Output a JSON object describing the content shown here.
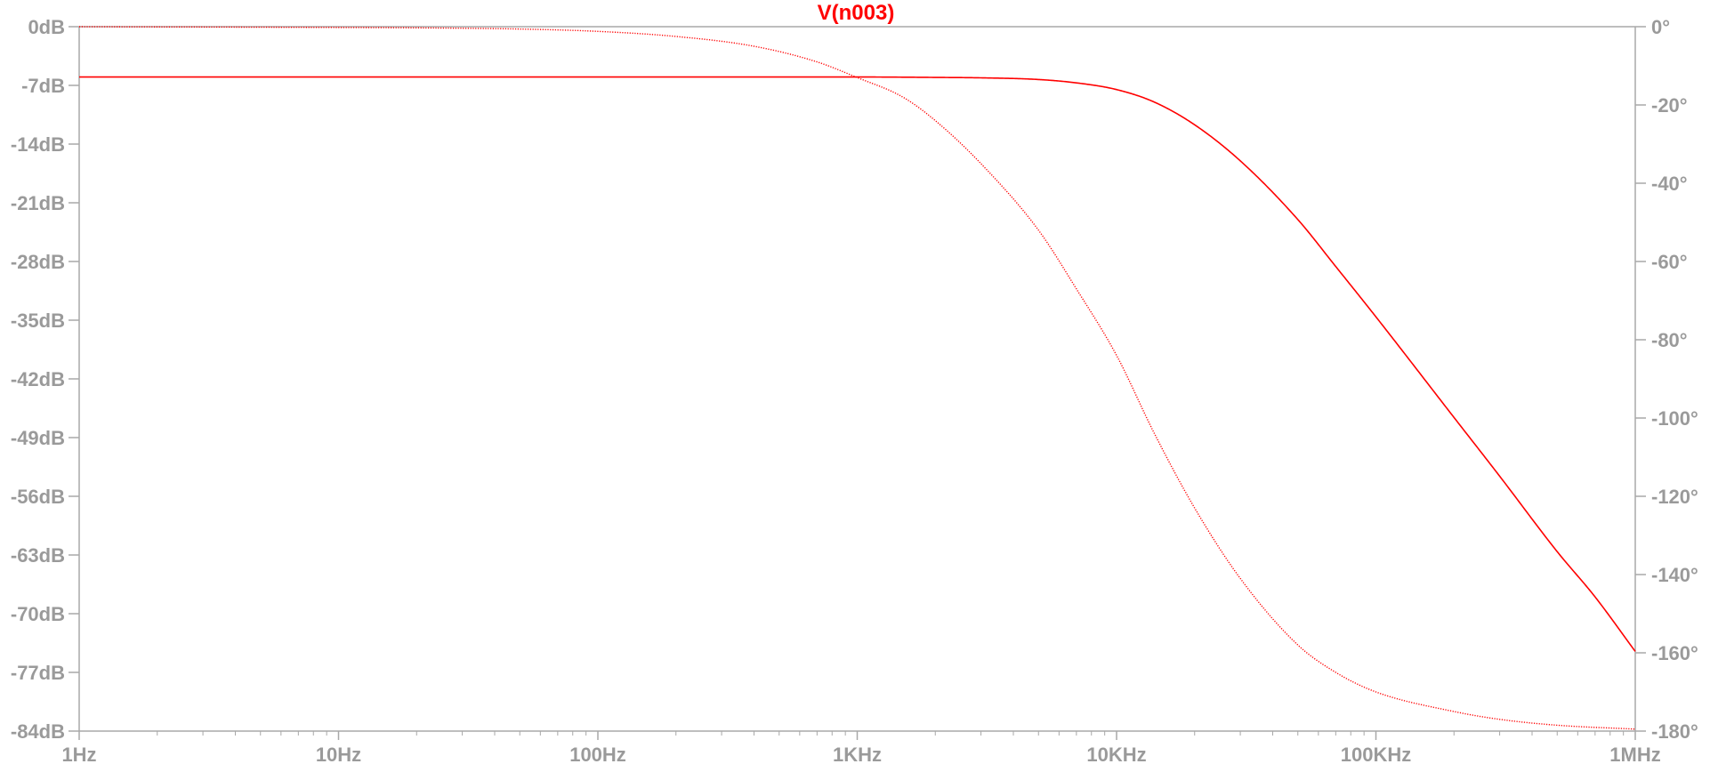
{
  "chart_data": {
    "type": "line",
    "title": "V(n003)",
    "x_scale": "log",
    "xlim_hz": [
      1,
      1000000
    ],
    "x_tick_values_hz": [
      1,
      10,
      100,
      1000,
      10000,
      100000,
      1000000
    ],
    "x_tick_labels": [
      "1Hz",
      "10Hz",
      "100Hz",
      "1KHz",
      "10KHz",
      "100KHz",
      "1MHz"
    ],
    "ylim_db": [
      -84,
      0
    ],
    "y_left_tick_values": [
      0,
      -7,
      -14,
      -21,
      -28,
      -35,
      -42,
      -49,
      -56,
      -63,
      -70,
      -77,
      -84
    ],
    "y_left_tick_labels": [
      "0dB",
      "-7dB",
      "-14dB",
      "-21dB",
      "-28dB",
      "-35dB",
      "-42dB",
      "-49dB",
      "-56dB",
      "-63dB",
      "-70dB",
      "-77dB",
      "-84dB"
    ],
    "ylim_deg": [
      -180,
      0
    ],
    "y_right_tick_values": [
      0,
      -20,
      -40,
      -60,
      -80,
      -100,
      -120,
      -140,
      -160,
      -180
    ],
    "y_right_tick_labels": [
      "0°",
      "-20°",
      "-40°",
      "-60°",
      "-80°",
      "-100°",
      "-120°",
      "-140°",
      "-160°",
      "-180°"
    ],
    "grid": false,
    "colors": {
      "trace": "#ff0000",
      "axis": "#a8a8a8",
      "labels": "#9a9a9a",
      "title": "#ff0000"
    },
    "series": [
      {
        "quantity": "magnitude",
        "unit": "dB",
        "style": "solid",
        "x": [
          1,
          10,
          100,
          1000,
          2000,
          3000,
          5000,
          7000,
          10000,
          14000,
          20000,
          30000,
          50000,
          70000,
          100000,
          200000,
          300000,
          500000,
          700000,
          1000000
        ],
        "y": [
          -6.0,
          -6.0,
          -6.0,
          -6.0,
          -6.05,
          -6.1,
          -6.3,
          -6.7,
          -7.5,
          -9.0,
          -11.7,
          -16.0,
          -23.0,
          -28.6,
          -34.6,
          -46.6,
          -53.6,
          -62.6,
          -68.0,
          -74.5
        ]
      },
      {
        "quantity": "phase",
        "unit": "deg",
        "style": "dotted",
        "x": [
          1,
          10,
          20,
          50,
          100,
          200,
          400,
          700,
          1000,
          1500,
          2000,
          3000,
          5000,
          7000,
          10000,
          14000,
          20000,
          30000,
          50000,
          70000,
          100000,
          200000,
          300000,
          500000,
          1000000
        ],
        "y": [
          0,
          -0.2,
          -0.3,
          -0.6,
          -1.2,
          -2.5,
          -5,
          -9,
          -13,
          -18,
          -24,
          -35,
          -52,
          -67,
          -84,
          -104,
          -123,
          -141,
          -158,
          -165,
          -170,
          -175,
          -177,
          -178.5,
          -179.5
        ]
      }
    ]
  }
}
